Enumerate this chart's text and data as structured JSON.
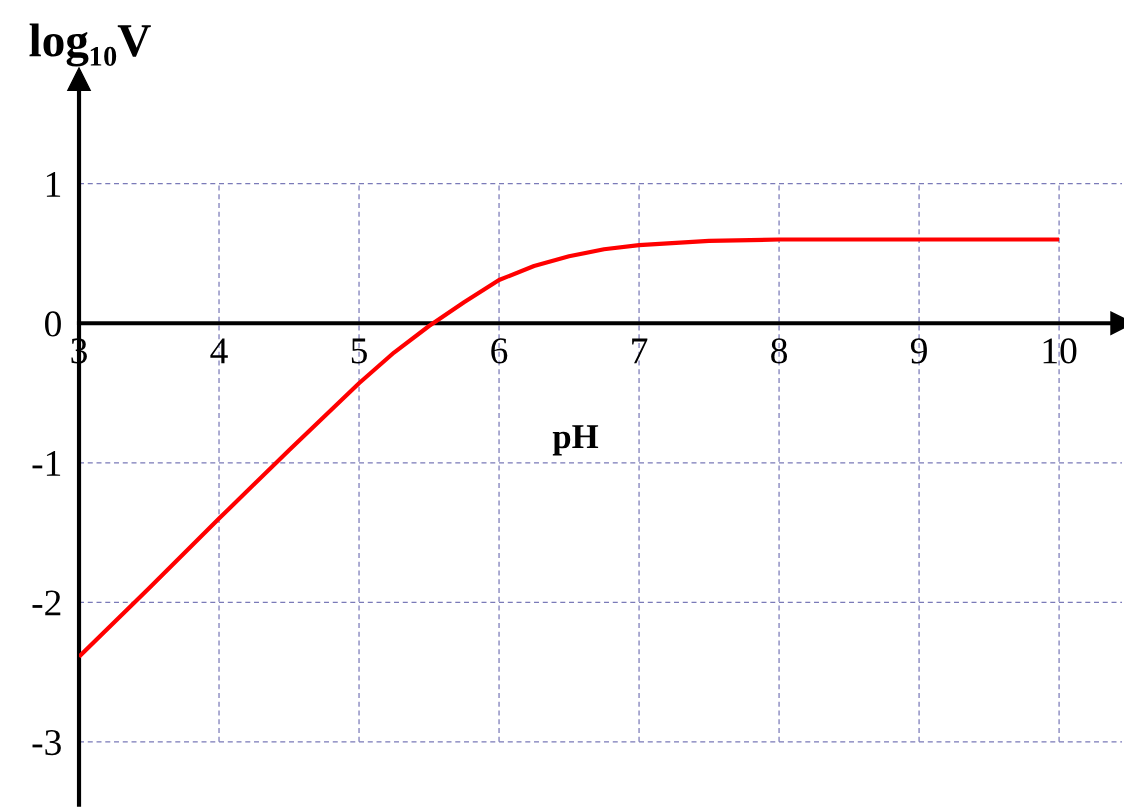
{
  "chart_data": {
    "type": "line",
    "xlabel": "pH",
    "ylabel": "log₁₀V",
    "x": [
      3,
      3.5,
      4,
      4.5,
      5,
      5.25,
      5.5,
      5.75,
      6,
      6.25,
      6.5,
      6.75,
      7,
      7.5,
      8,
      9,
      10
    ],
    "series": [
      {
        "color": "#ff0000",
        "values": [
          -2.39,
          -1.9,
          -1.4,
          -0.91,
          -0.43,
          -0.21,
          -0.02,
          0.15,
          0.31,
          0.41,
          0.48,
          0.53,
          0.56,
          0.59,
          0.6,
          0.6,
          0.6
        ]
      }
    ],
    "xlim": [
      3,
      10.45
    ],
    "ylim": [
      -3.45,
      1.75
    ],
    "xticks": [
      3,
      4,
      5,
      6,
      7,
      8,
      9,
      10
    ],
    "yticks": [
      -3,
      -2,
      -1,
      0,
      1
    ],
    "grid": true,
    "line_style": "solid"
  }
}
